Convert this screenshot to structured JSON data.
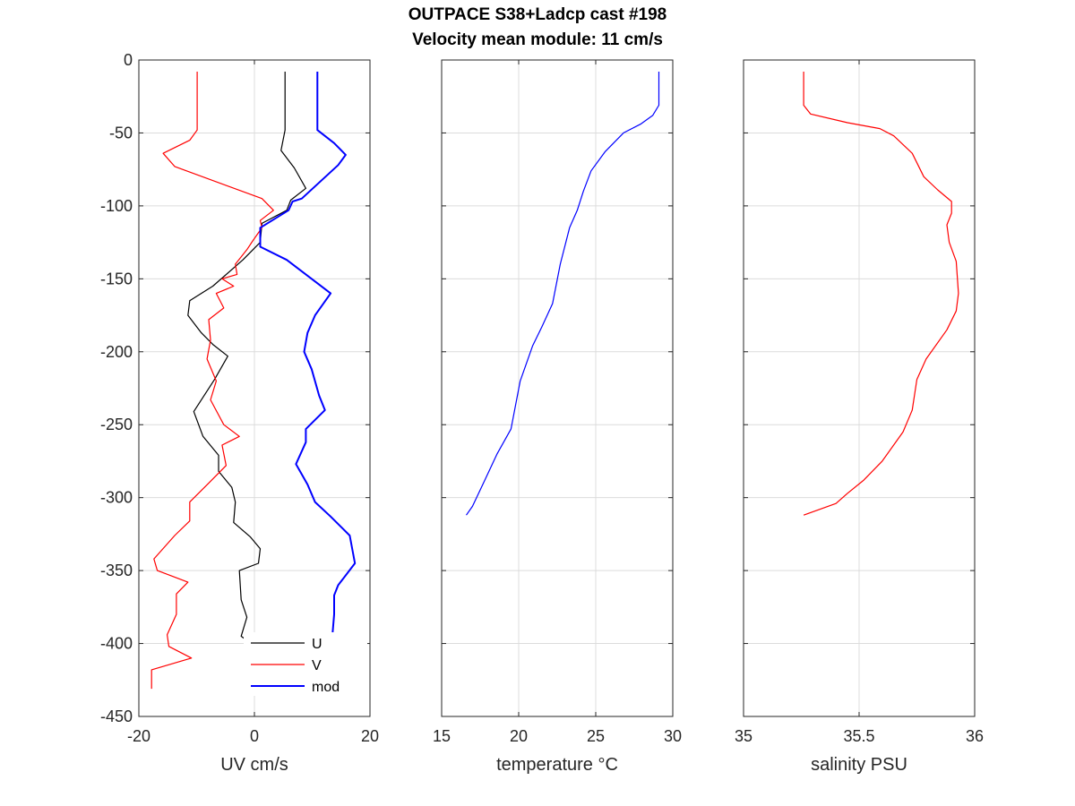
{
  "figure": {
    "title_line1": "OUTPACE S38+Ladcp cast #198",
    "title_line2": "Velocity mean module:  11 cm/s"
  },
  "chart_data": [
    {
      "type": "line",
      "xlabel": "UV cm/s",
      "ylabel": "",
      "xlim": [
        -20,
        20
      ],
      "ylim": [
        -450,
        0
      ],
      "xticks": [
        -20,
        0,
        20
      ],
      "yticks": [
        0,
        -50,
        -100,
        -150,
        -200,
        -250,
        -300,
        -350,
        -400,
        -450
      ],
      "grid": true,
      "legend": "bottom-right",
      "series": [
        {
          "name": "U",
          "color": "#000000",
          "points": [
            [
              5.3,
              -8
            ],
            [
              5.3,
              -48
            ],
            [
              4.6,
              -62
            ],
            [
              6.9,
              -74
            ],
            [
              8.9,
              -88
            ],
            [
              6.3,
              -96
            ],
            [
              5.6,
              -103
            ],
            [
              1.3,
              -112
            ],
            [
              1.0,
              -125
            ],
            [
              -2.0,
              -137
            ],
            [
              -7.2,
              -155
            ],
            [
              -11.2,
              -165
            ],
            [
              -11.5,
              -175
            ],
            [
              -9.2,
              -187
            ],
            [
              -7.2,
              -195
            ],
            [
              -4.6,
              -203
            ],
            [
              -6.9,
              -219
            ],
            [
              -10.5,
              -241
            ],
            [
              -8.9,
              -258
            ],
            [
              -6.2,
              -271
            ],
            [
              -6.2,
              -282
            ],
            [
              -3.9,
              -293
            ],
            [
              -3.3,
              -303
            ],
            [
              -3.6,
              -317
            ],
            [
              -0.7,
              -327
            ],
            [
              1.0,
              -335
            ],
            [
              0.7,
              -345
            ],
            [
              -2.6,
              -350
            ],
            [
              -2.3,
              -370
            ],
            [
              -1.3,
              -382
            ],
            [
              -2.3,
              -395
            ],
            [
              -0.3,
              -401
            ],
            [
              6.3,
              -404
            ],
            [
              2.6,
              -414
            ],
            [
              2.6,
              -431
            ]
          ]
        },
        {
          "name": "V",
          "color": "#ff0000",
          "points": [
            [
              -9.9,
              -8
            ],
            [
              -9.9,
              -48
            ],
            [
              -11.2,
              -55
            ],
            [
              -15.8,
              -64
            ],
            [
              -13.8,
              -73
            ],
            [
              1.3,
              -95
            ],
            [
              3.3,
              -103
            ],
            [
              1.0,
              -110
            ],
            [
              1.3,
              -115
            ],
            [
              -0.3,
              -124
            ],
            [
              -1.3,
              -130
            ],
            [
              -3.3,
              -140
            ],
            [
              -3.0,
              -147
            ],
            [
              -5.6,
              -150
            ],
            [
              -3.6,
              -155
            ],
            [
              -6.6,
              -160
            ],
            [
              -5.3,
              -170
            ],
            [
              -7.9,
              -178
            ],
            [
              -7.6,
              -192
            ],
            [
              -8.2,
              -205
            ],
            [
              -6.6,
              -220
            ],
            [
              -7.6,
              -233
            ],
            [
              -5.3,
              -250
            ],
            [
              -2.6,
              -258
            ],
            [
              -5.6,
              -264
            ],
            [
              -4.9,
              -278
            ],
            [
              -7.9,
              -290
            ],
            [
              -11.2,
              -303
            ],
            [
              -11.2,
              -316
            ],
            [
              -13.8,
              -326
            ],
            [
              -17.4,
              -342
            ],
            [
              -16.8,
              -350
            ],
            [
              -11.5,
              -358
            ],
            [
              -13.5,
              -366
            ],
            [
              -13.5,
              -380
            ],
            [
              -15.1,
              -394
            ],
            [
              -14.8,
              -402
            ],
            [
              -10.9,
              -410
            ],
            [
              -17.8,
              -418
            ],
            [
              -17.8,
              -431
            ]
          ]
        },
        {
          "name": "mod",
          "color": "#0000ff",
          "points": [
            [
              10.9,
              -8
            ],
            [
              10.9,
              -48
            ],
            [
              13.8,
              -57
            ],
            [
              15.8,
              -65
            ],
            [
              14.5,
              -72
            ],
            [
              8.2,
              -95
            ],
            [
              6.6,
              -97
            ],
            [
              5.9,
              -103
            ],
            [
              1.0,
              -115
            ],
            [
              1.0,
              -128
            ],
            [
              5.6,
              -137
            ],
            [
              13.2,
              -160
            ],
            [
              10.5,
              -175
            ],
            [
              9.2,
              -187
            ],
            [
              8.6,
              -200
            ],
            [
              9.9,
              -212
            ],
            [
              11.2,
              -230
            ],
            [
              12.2,
              -240
            ],
            [
              8.9,
              -253
            ],
            [
              8.9,
              -262
            ],
            [
              7.2,
              -277
            ],
            [
              9.2,
              -291
            ],
            [
              10.5,
              -303
            ],
            [
              13.2,
              -313
            ],
            [
              16.5,
              -326
            ],
            [
              17.4,
              -345
            ],
            [
              14.5,
              -360
            ],
            [
              13.8,
              -367
            ],
            [
              13.8,
              -380
            ],
            [
              13.5,
              -394
            ],
            [
              14.2,
              -405
            ],
            [
              13.2,
              -410
            ],
            [
              16.1,
              -419
            ],
            [
              17.1,
              -420
            ],
            [
              17.1,
              -431
            ]
          ]
        }
      ]
    },
    {
      "type": "line",
      "xlabel": "temperature °C",
      "ylabel": "",
      "xlim": [
        15,
        30
      ],
      "ylim": [
        -450,
        0
      ],
      "xticks": [
        15,
        20,
        25,
        30
      ],
      "grid": true,
      "series": [
        {
          "name": "",
          "color": "#0000ff",
          "points": [
            [
              29.1,
              -8
            ],
            [
              29.1,
              -31
            ],
            [
              28.7,
              -38
            ],
            [
              27.9,
              -44
            ],
            [
              26.8,
              -50
            ],
            [
              25.6,
              -63
            ],
            [
              24.7,
              -76
            ],
            [
              24.2,
              -90
            ],
            [
              23.8,
              -103
            ],
            [
              23.3,
              -115
            ],
            [
              22.7,
              -140
            ],
            [
              22.2,
              -167
            ],
            [
              21.5,
              -183
            ],
            [
              20.9,
              -196
            ],
            [
              20.1,
              -220
            ],
            [
              19.5,
              -253
            ],
            [
              18.6,
              -270
            ],
            [
              17.8,
              -288
            ],
            [
              17.0,
              -306
            ],
            [
              16.6,
              -312
            ]
          ]
        }
      ]
    },
    {
      "type": "line",
      "xlabel": "salinity PSU",
      "ylabel": "",
      "xlim": [
        35,
        36
      ],
      "ylim": [
        -450,
        0
      ],
      "xticks": [
        35,
        35.5,
        36
      ],
      "grid": true,
      "series": [
        {
          "name": "",
          "color": "#ff0000",
          "points": [
            [
              35.26,
              -8
            ],
            [
              35.26,
              -31
            ],
            [
              35.29,
              -37
            ],
            [
              35.45,
              -43
            ],
            [
              35.59,
              -47
            ],
            [
              35.65,
              -52
            ],
            [
              35.73,
              -64
            ],
            [
              35.78,
              -80
            ],
            [
              35.84,
              -89
            ],
            [
              35.9,
              -97
            ],
            [
              35.9,
              -105
            ],
            [
              35.88,
              -113
            ],
            [
              35.89,
              -125
            ],
            [
              35.92,
              -138
            ],
            [
              35.93,
              -160
            ],
            [
              35.92,
              -172
            ],
            [
              35.88,
              -185
            ],
            [
              35.79,
              -205
            ],
            [
              35.75,
              -219
            ],
            [
              35.73,
              -240
            ],
            [
              35.69,
              -255
            ],
            [
              35.6,
              -275
            ],
            [
              35.52,
              -288
            ],
            [
              35.45,
              -297
            ],
            [
              35.4,
              -304
            ],
            [
              35.26,
              -312
            ]
          ]
        }
      ]
    }
  ]
}
